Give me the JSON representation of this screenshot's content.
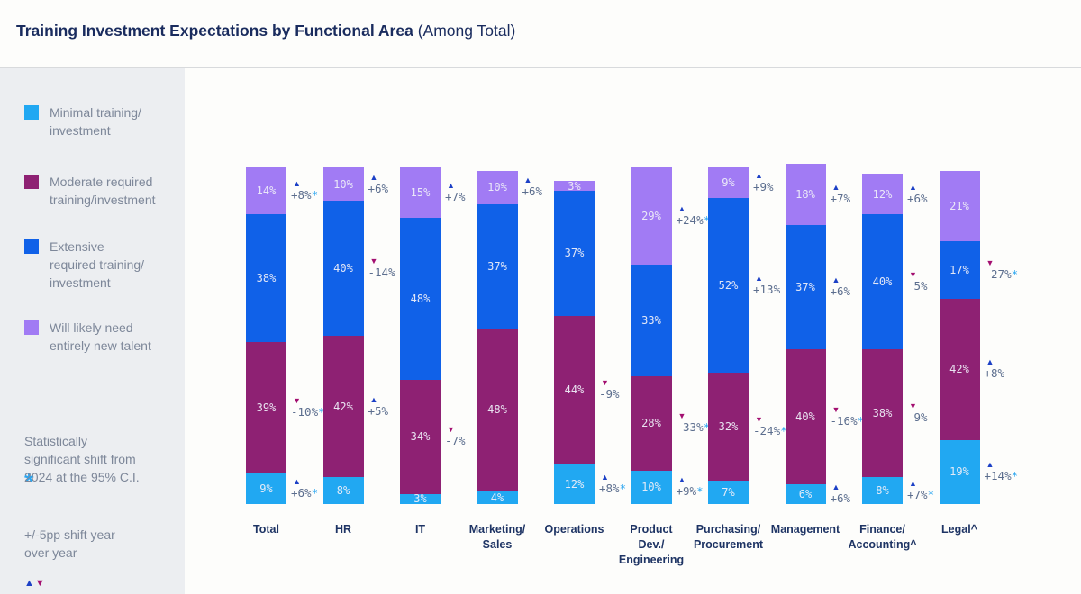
{
  "title": {
    "bold": "Training Investment Expectations by Functional Area",
    "suffix": " (Among Total)"
  },
  "colors": {
    "minimal": "#21a8f2",
    "moderate": "#8e2173",
    "extensive": "#1061e8",
    "new_talent": "#a17bf4",
    "up": "#1c40c6",
    "down": "#a30f70",
    "star": "#2ca6f0"
  },
  "legend": {
    "items": [
      {
        "label": "Minimal  training/\ninvestment",
        "color_key": "minimal"
      },
      {
        "label": "Moderate required\ntraining/investment",
        "color_key": "moderate"
      },
      {
        "label": "Extensive\nrequired training/\ninvestment",
        "color_key": "extensive"
      },
      {
        "label": "Will likely need\nentirely new talent",
        "color_key": "new_talent"
      }
    ]
  },
  "notes": {
    "star_symbol": "*",
    "star_note": "Statistically\nsignificant shift from\n2024 at the 95% C.I.",
    "up_arrow": "▲",
    "down_arrow": "▼",
    "shift_note": "+/-5pp shift year\nover year"
  },
  "chart_data": {
    "type": "bar",
    "subtype": "stacked-100-percent-vertical",
    "ylabel": "",
    "xlabel": "",
    "series": [
      {
        "name": "Minimal training/investment",
        "color_key": "minimal"
      },
      {
        "name": "Moderate required training/investment",
        "color_key": "moderate"
      },
      {
        "name": "Extensive required training/investment",
        "color_key": "extensive"
      },
      {
        "name": "Will likely need entirely new talent",
        "color_key": "new_talent"
      }
    ],
    "categories": [
      {
        "label": "Total",
        "values": [
          9,
          39,
          38,
          14
        ],
        "annotations": [
          {
            "seg": 3,
            "dir": "up",
            "text": "+8%",
            "star": true
          },
          {
            "seg": 1,
            "dir": "down",
            "text": "-10%",
            "star": true
          },
          {
            "seg": 0,
            "dir": "up",
            "text": "+6%",
            "star": true
          }
        ]
      },
      {
        "label": "HR",
        "values": [
          8,
          42,
          40,
          10
        ],
        "annotations": [
          {
            "seg": 3,
            "dir": "up",
            "text": "+6%",
            "star": false
          },
          {
            "seg": 2,
            "dir": "down",
            "text": "-14%",
            "star": false
          },
          {
            "seg": 1,
            "dir": "up",
            "text": "+5%",
            "star": false
          }
        ]
      },
      {
        "label": "IT",
        "values": [
          3,
          34,
          48,
          15
        ],
        "annotations": [
          {
            "seg": 3,
            "dir": "up",
            "text": "+7%",
            "star": false
          },
          {
            "seg": 1,
            "dir": "down",
            "text": "-7%",
            "star": false
          }
        ]
      },
      {
        "label": "Marketing/\nSales",
        "values": [
          4,
          48,
          37,
          10
        ],
        "annotations": [
          {
            "seg": 3,
            "dir": "up",
            "text": "+6%",
            "star": false
          }
        ]
      },
      {
        "label": "Operations",
        "values": [
          12,
          44,
          37,
          3
        ],
        "annotations": [
          {
            "seg": 1,
            "dir": "down",
            "text": "-9%",
            "star": false
          },
          {
            "seg": 0,
            "dir": "up",
            "text": "+8%",
            "star": true
          }
        ]
      },
      {
        "label": "Product\nDev./\nEngineering",
        "values": [
          10,
          28,
          33,
          29
        ],
        "annotations": [
          {
            "seg": 3,
            "dir": "up",
            "text": "+24%",
            "star": true
          },
          {
            "seg": 1,
            "dir": "down",
            "text": "-33%",
            "star": true
          },
          {
            "seg": 0,
            "dir": "up",
            "text": "+9%",
            "star": true
          }
        ]
      },
      {
        "label": "Purchasing/\nProcurement",
        "values": [
          7,
          32,
          52,
          9
        ],
        "annotations": [
          {
            "seg": 3,
            "dir": "up",
            "text": "+9%",
            "star": false
          },
          {
            "seg": 2,
            "dir": "up",
            "text": "+13%",
            "star": false
          },
          {
            "seg": 1,
            "dir": "down",
            "text": "-24%",
            "star": true
          }
        ]
      },
      {
        "label": "Management",
        "values": [
          6,
          40,
          37,
          18
        ],
        "annotations": [
          {
            "seg": 3,
            "dir": "up",
            "text": "+7%",
            "star": false
          },
          {
            "seg": 2,
            "dir": "up",
            "text": "+6%",
            "star": false
          },
          {
            "seg": 1,
            "dir": "down",
            "text": "-16%",
            "star": true
          },
          {
            "seg": 0,
            "dir": "up",
            "text": "+6%",
            "star": false
          }
        ]
      },
      {
        "label": "Finance/\nAccounting^",
        "values": [
          8,
          38,
          40,
          12
        ],
        "annotations": [
          {
            "seg": 3,
            "dir": "up",
            "text": "+6%",
            "star": false
          },
          {
            "seg": 2,
            "dir": "down",
            "text": " 5%",
            "star": false
          },
          {
            "seg": 1,
            "dir": "down",
            "text": " 9%",
            "star": false
          },
          {
            "seg": 0,
            "dir": "up",
            "text": "+7%",
            "star": true
          }
        ]
      },
      {
        "label": "Legal^",
        "values": [
          19,
          42,
          17,
          21
        ],
        "annotations": [
          {
            "seg": 2,
            "dir": "down",
            "text": "-27%",
            "star": true
          },
          {
            "seg": 1,
            "dir": "up",
            "text": "+8%",
            "star": false
          },
          {
            "seg": 0,
            "dir": "up",
            "text": "+14%",
            "star": true
          }
        ]
      }
    ]
  }
}
